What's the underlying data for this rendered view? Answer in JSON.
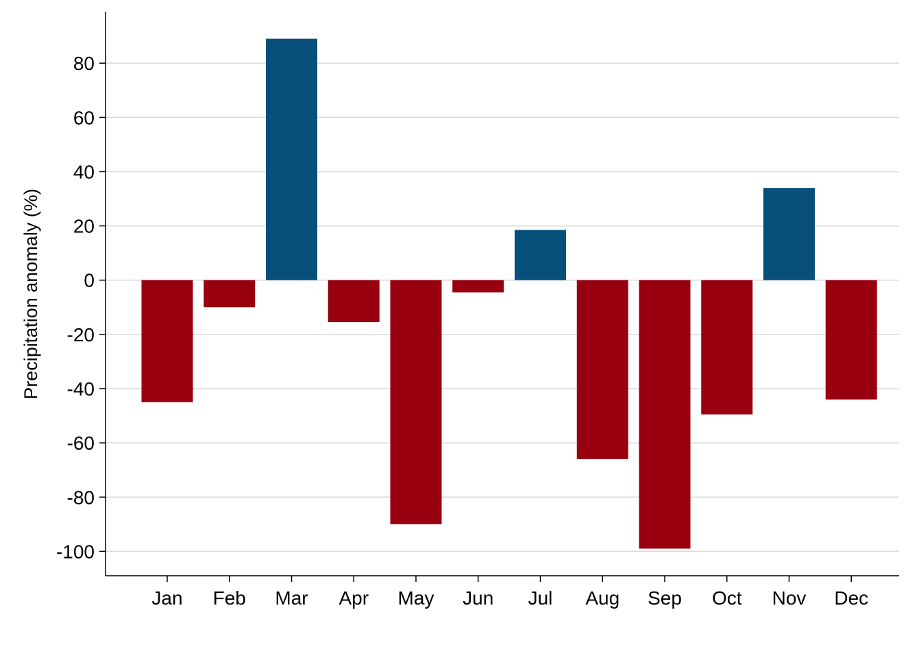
{
  "chart_data": {
    "type": "bar",
    "title": "",
    "xlabel": "",
    "ylabel": "Precipitation anomaly (%)",
    "categories": [
      "Jan",
      "Feb",
      "Mar",
      "Apr",
      "May",
      "Jun",
      "Jul",
      "Aug",
      "Sep",
      "Oct",
      "Nov",
      "Dec"
    ],
    "values": [
      -45,
      -10,
      89,
      -15.5,
      -90,
      -4.5,
      18.5,
      -66,
      -99,
      -49.5,
      34,
      -44
    ],
    "ylim": [
      -109,
      99
    ],
    "yticks": [
      -100,
      -80,
      -60,
      -40,
      -20,
      0,
      20,
      40,
      60,
      80
    ],
    "grid": true,
    "legend": "none",
    "colors": {
      "positive": "#054f7a",
      "negative": "#99000f",
      "grid": "#d9d9d9",
      "axis": "#000000"
    }
  }
}
